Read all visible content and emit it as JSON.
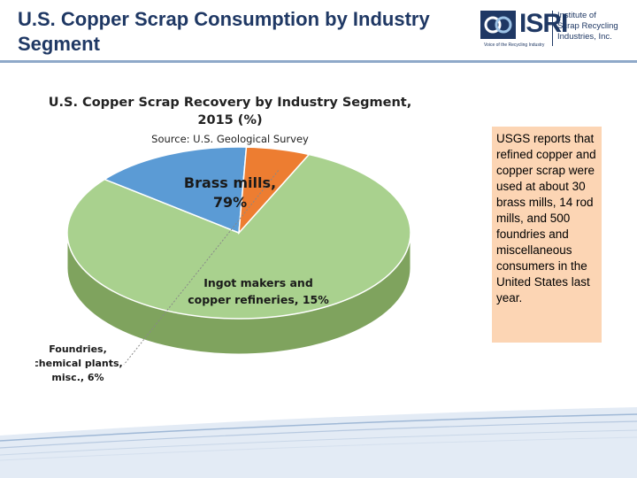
{
  "slide": {
    "title": "U.S. Copper Scrap Consumption by Industry Segment",
    "accent_color": "#1f3864",
    "rule_color": "#8fa9c9"
  },
  "logo": {
    "wordmark": "ISRI",
    "lines": [
      "Institute of",
      "Scrap Recycling",
      "Industries, Inc."
    ],
    "tagline": "Voice of the Recycling Industry",
    "icon": "isri-logo-icon"
  },
  "note": {
    "text": "USGS reports that refined copper and copper scrap were used at about 30 brass mills, 14 rod mills, and 500 foundries and miscellaneous consumers in the United States last year.",
    "background": "#fcd5b4"
  },
  "chart_data": {
    "type": "pie",
    "title_lines": [
      "U.S. Copper Scrap Recovery by Industry Segment,",
      "2015 (%)"
    ],
    "subtitle": "Source: U.S. Geological Survey",
    "slices": [
      {
        "label_lines": [
          "Brass mills,",
          "79%"
        ],
        "value": 79,
        "color": "#a9d18e",
        "side_color": "#7fa35e"
      },
      {
        "label_lines": [
          "Ingot makers and",
          "copper refineries, 15%"
        ],
        "value": 15,
        "color": "#5b9bd5",
        "side_color": "#2f5f8f"
      },
      {
        "label_lines": [
          "Foundries,",
          "chemical plants,",
          "misc., 6%"
        ],
        "value": 6,
        "color": "#ed7d31",
        "side_color": "#b4561a"
      }
    ],
    "style": "3d",
    "legend": "none"
  }
}
